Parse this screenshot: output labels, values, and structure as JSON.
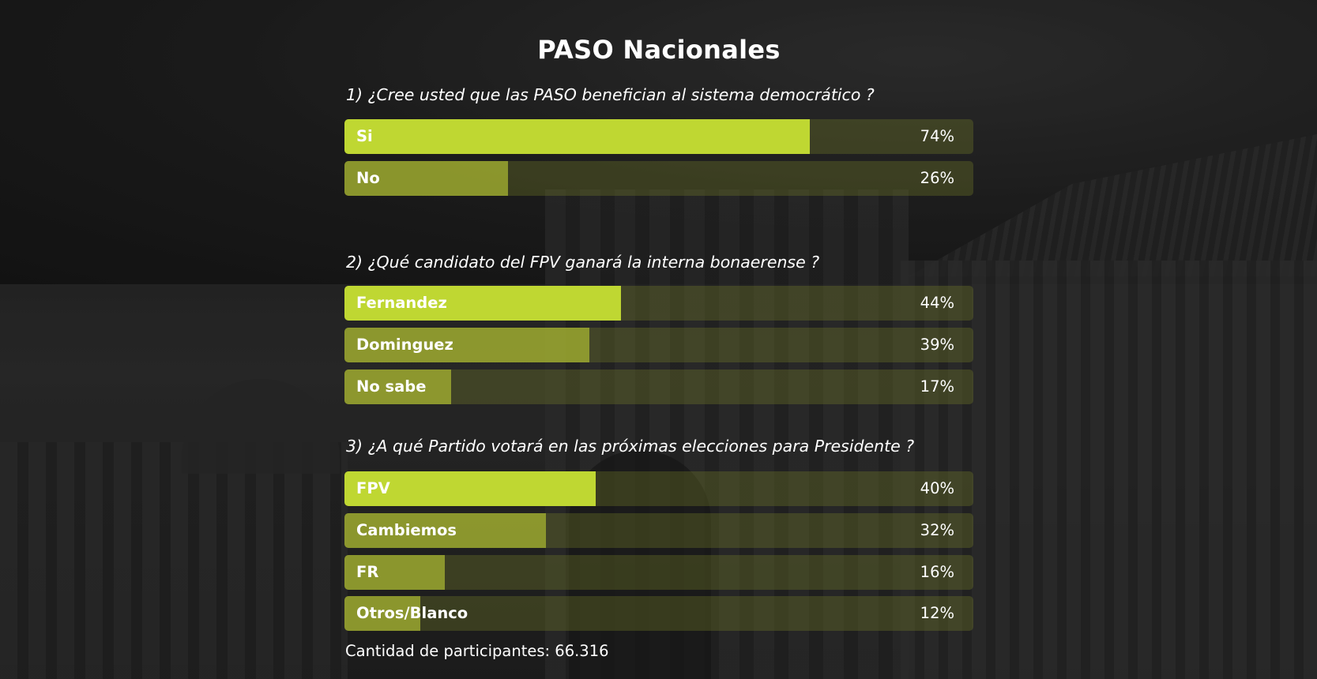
{
  "chart_data": {
    "type": "bar",
    "title": "PASO Nacionales",
    "unit": "%",
    "questions": [
      {
        "question": "1) ¿Cree usted que las PASO benefician al sistema democrático ?",
        "categories": [
          "Si",
          "No"
        ],
        "values": [
          74,
          26
        ],
        "value_labels": [
          "74%",
          "26%"
        ]
      },
      {
        "question": "2) ¿Qué candidato del FPV ganará la interna bonaerense ?",
        "categories": [
          "Fernandez",
          "Dominguez",
          "No sabe"
        ],
        "values": [
          44,
          39,
          17
        ],
        "value_labels": [
          "44%",
          "39%",
          "17%"
        ]
      },
      {
        "question": "3) ¿A qué Partido votará en las próximas elecciones para Presidente ?",
        "categories": [
          "FPV",
          "Cambiemos",
          "FR",
          "Otros/Blanco"
        ],
        "values": [
          40,
          32,
          16,
          12
        ],
        "value_labels": [
          "40%",
          "32%",
          "16%",
          "12%"
        ]
      }
    ],
    "xlim": [
      0,
      100
    ],
    "grid": false,
    "legend": "none"
  },
  "footer": {
    "label": "Cantidad de participantes:",
    "value": "66.316"
  },
  "colors": {
    "lead_bar": "#bfd732",
    "other_bar": "#a9b932",
    "track": "#5a6120"
  }
}
